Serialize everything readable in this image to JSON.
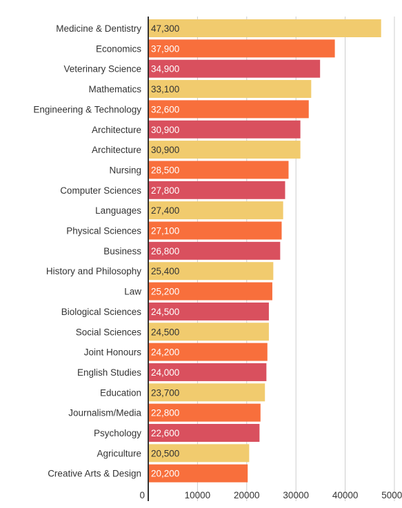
{
  "chart_data": {
    "type": "bar",
    "orientation": "horizontal",
    "title": "",
    "xlabel": "",
    "ylabel": "",
    "xlim": [
      0,
      50000
    ],
    "x_ticks": [
      "0",
      "10000",
      "20000",
      "30000",
      "40000",
      "50000"
    ],
    "grid": true,
    "categories": [
      "Medicine & Dentistry",
      "Economics",
      "Veterinary Science",
      "Mathematics",
      "Engineering & Technology",
      "Architecture",
      "Architecture",
      "Nursing",
      "Computer Sciences",
      "Languages",
      "Physical Sciences",
      "Business",
      "History and Philosophy",
      "Law",
      "Biological Sciences",
      "Social Sciences",
      "Joint Honours",
      "English Studies",
      "Education",
      "Journalism/Media",
      "Psychology",
      "Agriculture",
      "Creative Arts & Design"
    ],
    "values": [
      47300,
      37900,
      34900,
      33100,
      32600,
      30900,
      30900,
      28500,
      27800,
      27400,
      27100,
      26800,
      25400,
      25200,
      24500,
      24500,
      24200,
      24000,
      23700,
      22800,
      22600,
      20500,
      20200
    ],
    "value_labels": [
      "47,300",
      "37,900",
      "34,900",
      "33,100",
      "32,600",
      "30,900",
      "30,900",
      "28,500",
      "27,800",
      "27,400",
      "27,100",
      "26,800",
      "25,400",
      "25,200",
      "24,500",
      "24,500",
      "24,200",
      "24,000",
      "23,700",
      "22,800",
      "22,600",
      "20,500",
      "20,200"
    ],
    "colors": [
      "#f1cb6e",
      "#f86f3c",
      "#d9505e"
    ],
    "label_colors": [
      "#333333",
      "#ffffff",
      "#ffffff"
    ],
    "axis_color": "#333333",
    "grid_color": "#cccccc"
  }
}
